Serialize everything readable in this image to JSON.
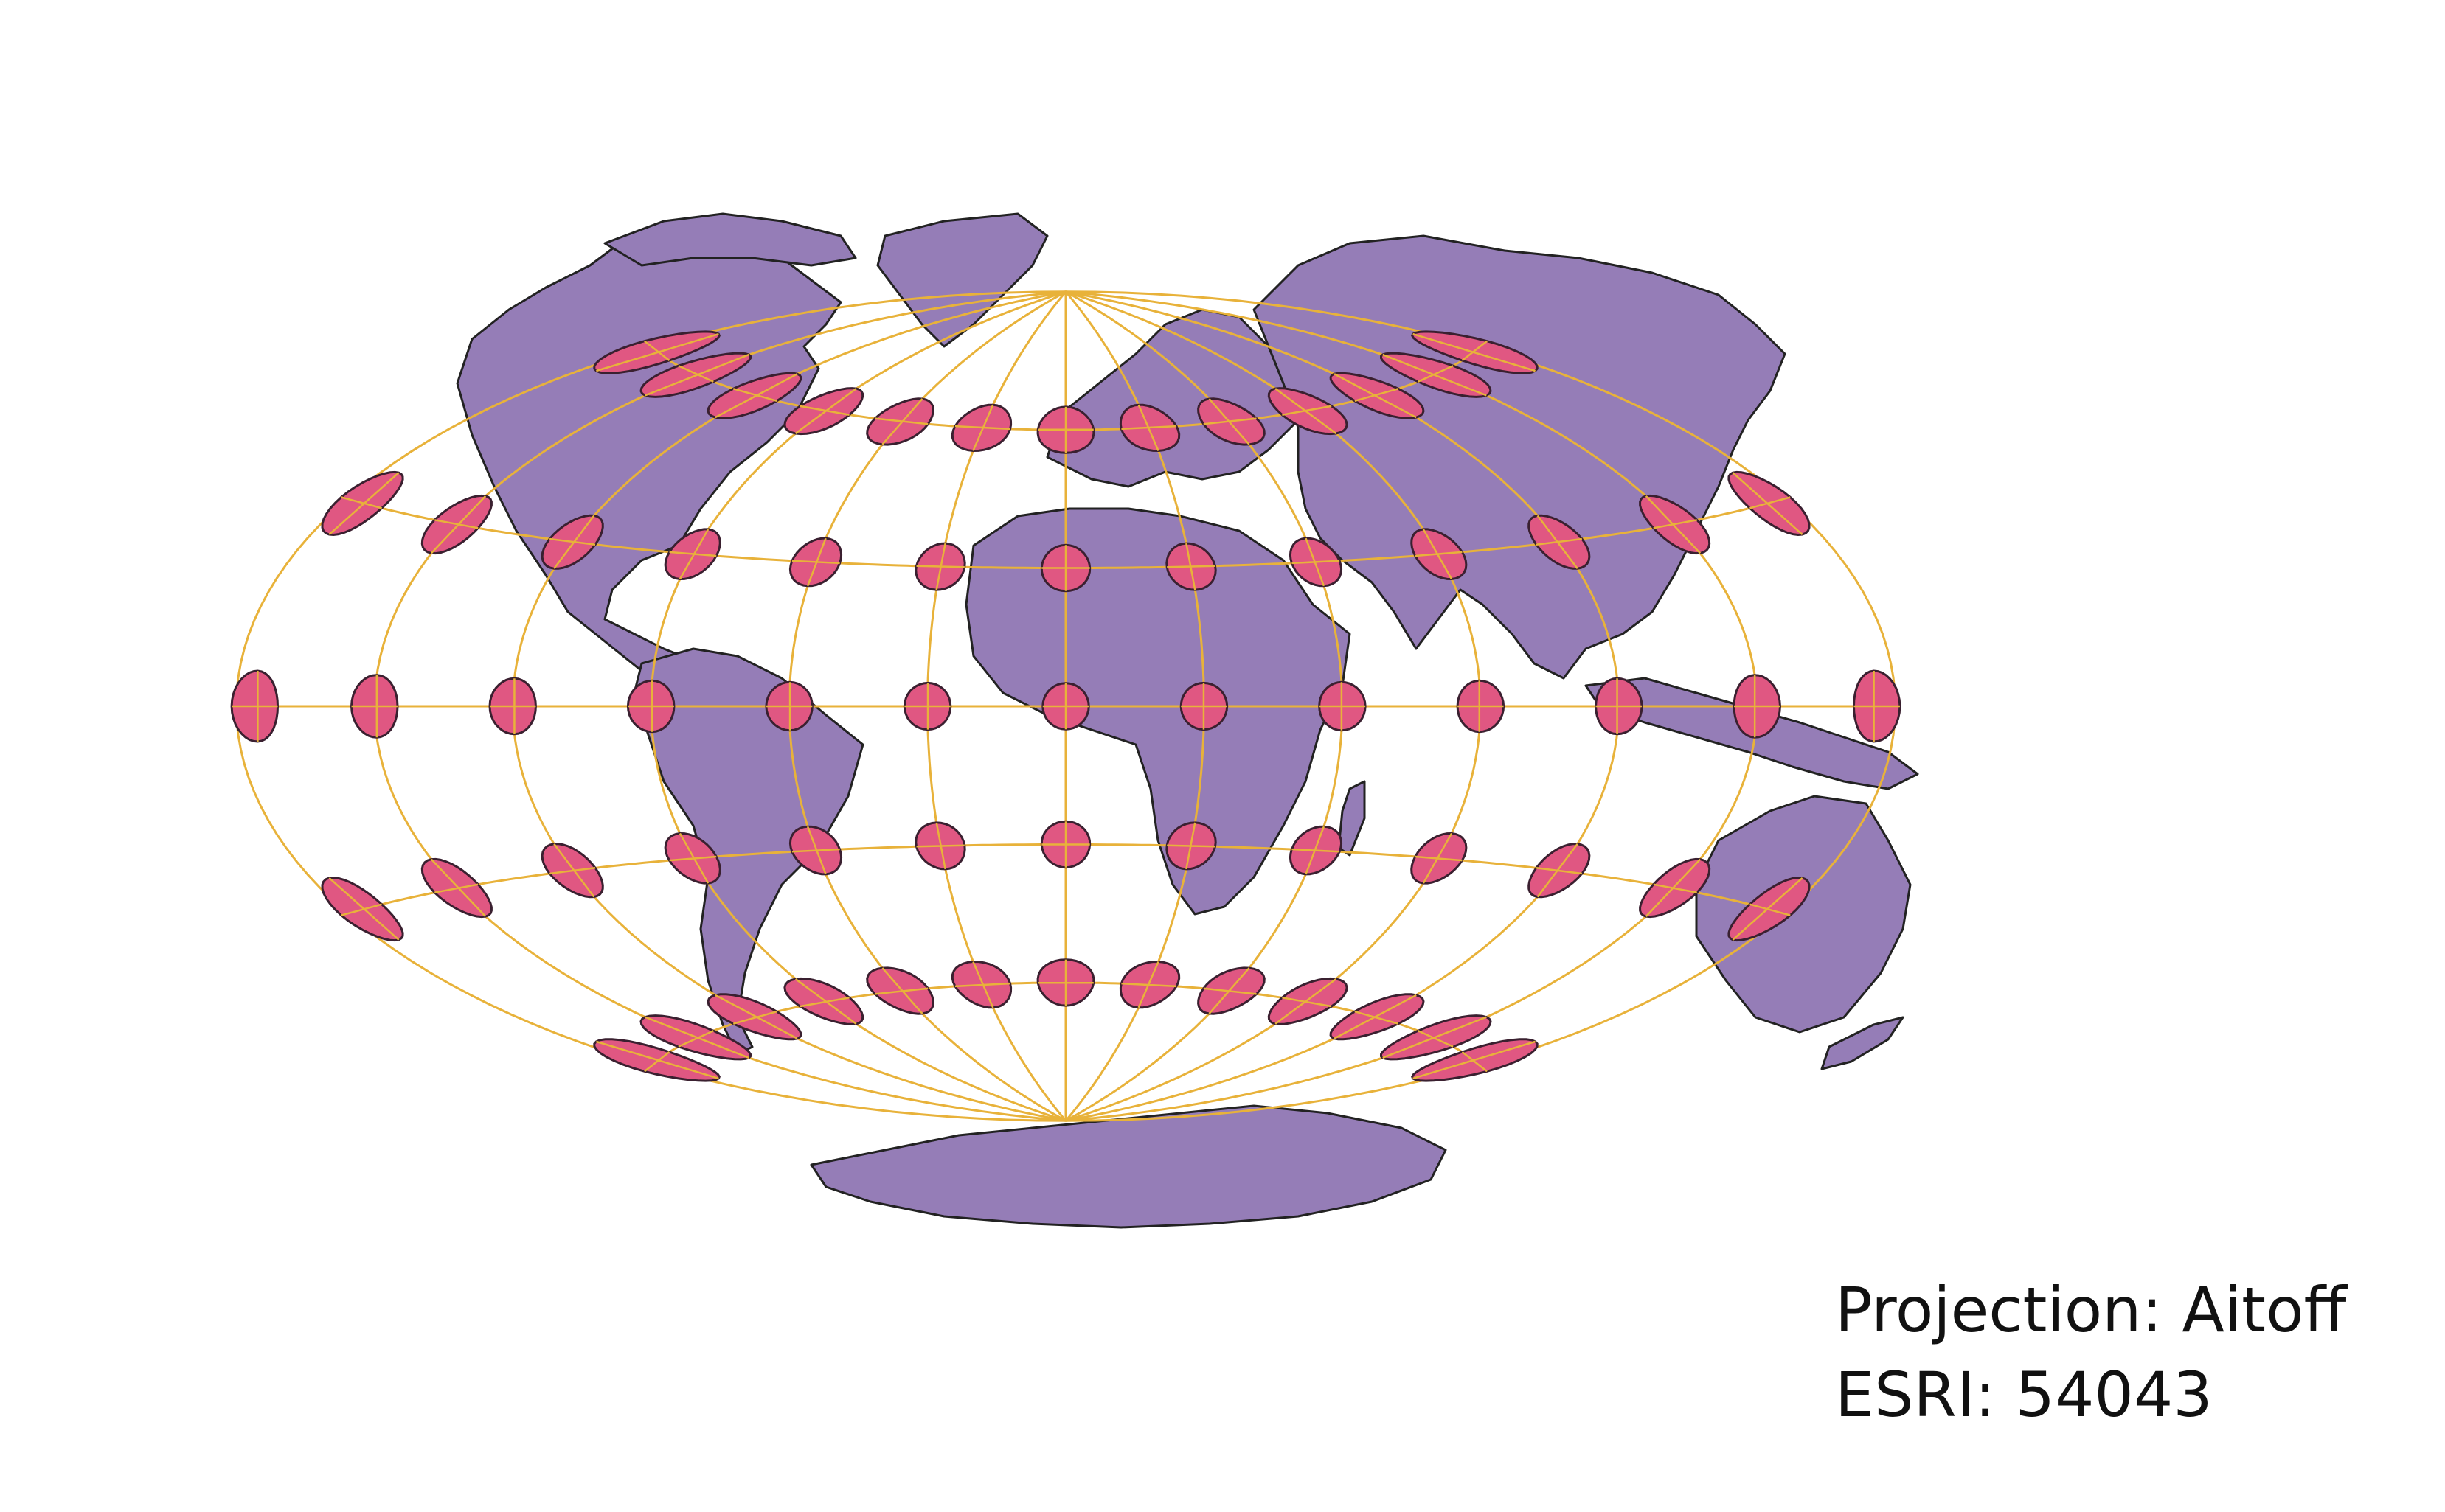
{
  "caption": {
    "projection_label": "Projection: Aitoff",
    "code_label": "ESRI: 54043"
  },
  "colors": {
    "land_fill": "#957DB7",
    "coastline": "#222222",
    "graticule": "#E8B23A",
    "indicatrix_fill": "#E05782",
    "indicatrix_stroke": "#3a2030",
    "background": "#FFFFFF"
  },
  "projection": {
    "name": "Aitoff",
    "graticule_step_degrees": 30,
    "indicatrix_longitudes": [
      -180,
      -150,
      -120,
      -90,
      -60,
      -30,
      0,
      30,
      60,
      90,
      120,
      150,
      180
    ],
    "indicatrix_latitudes": [
      -60,
      -30,
      0,
      30,
      60
    ]
  },
  "map_features": [
    "world-landmasses",
    "country-borders",
    "tissot-indicatrix",
    "graticule"
  ]
}
